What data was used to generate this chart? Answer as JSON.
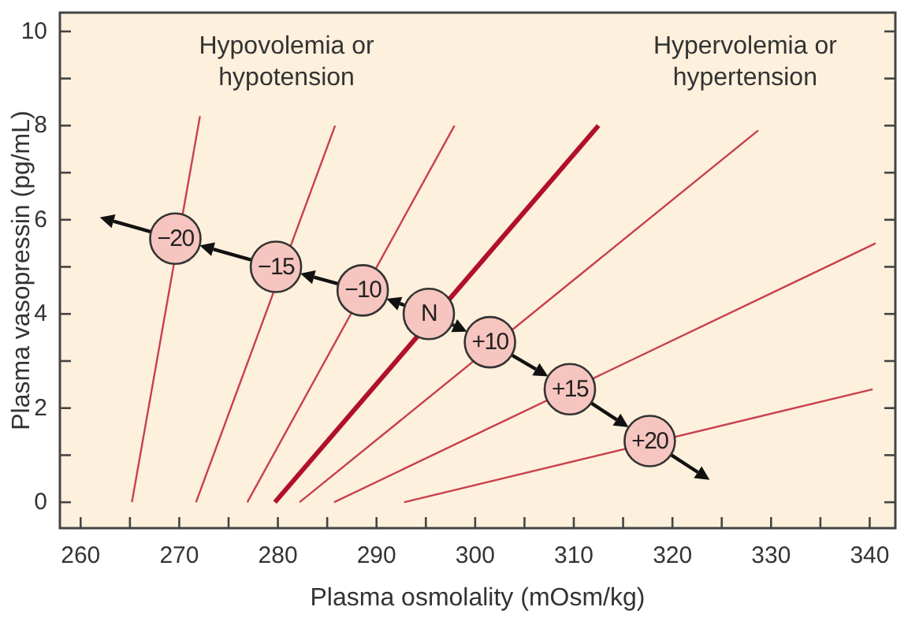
{
  "chart_data": {
    "type": "line",
    "xlabel": "Plasma osmolality (mOsm/kg)",
    "ylabel": "Plasma vasopressin (pg/mL)",
    "annotations": [
      "Hypovolemia or\nhypotension",
      "Hypervolemia or\nhypertension",
      {
        "text": "−20",
        "x": 269.6,
        "y": 5.6
      },
      {
        "text": "−15",
        "x": 279.8,
        "y": 5.0
      },
      {
        "text": "−10",
        "x": 288.6,
        "y": 4.5
      },
      {
        "text": "N",
        "x": 295.3,
        "y": 4.0
      },
      {
        "text": "+10",
        "x": 301.5,
        "y": 3.4
      },
      {
        "text": "+15",
        "x": 309.6,
        "y": 2.4
      },
      {
        "text": "+20",
        "x": 317.7,
        "y": 1.3
      }
    ],
    "xlim": [
      257.9,
      342.6
    ],
    "ylim": [
      -0.55,
      10.4
    ],
    "xticks": [
      260,
      {
        "value": 265,
        "label": null
      },
      270,
      {
        "value": 275,
        "label": null
      },
      280,
      {
        "value": 285,
        "label": null
      },
      290,
      {
        "value": 295,
        "label": null
      },
      300,
      {
        "value": 305,
        "label": null
      },
      310,
      {
        "value": 315,
        "label": null
      },
      320,
      {
        "value": 325,
        "label": null
      },
      330,
      {
        "value": 335,
        "label": null
      },
      340
    ],
    "yticks": [
      0,
      {
        "value": 1,
        "label": null
      },
      2,
      {
        "value": 3,
        "label": null
      },
      4,
      {
        "value": 5,
        "label": null
      },
      6,
      {
        "value": 7,
        "label": null
      },
      8,
      {
        "value": 9,
        "label": null
      },
      10
    ],
    "series": [
      {
        "color": "#c8404c",
        "x": [
          265.2,
          272.1
        ],
        "values": [
          0,
          8.2
        ]
      },
      {
        "color": "#c8404c",
        "x": [
          271.7,
          285.8
        ],
        "values": [
          0,
          8.0
        ]
      },
      {
        "color": "#c8404c",
        "x": [
          276.9,
          297.9
        ],
        "values": [
          0,
          8.0
        ]
      },
      {
        "color": "#b0102a",
        "x": [
          279.7,
          312.5
        ],
        "values": [
          0,
          8.0
        ]
      },
      {
        "color": "#c8404c",
        "x": [
          282.2,
          328.7
        ],
        "values": [
          0,
          7.9
        ]
      },
      {
        "color": "#c8404c",
        "x": [
          285.7,
          340.6
        ],
        "values": [
          0,
          5.5
        ]
      },
      {
        "color": "#c8404c",
        "x": [
          292.8,
          340.3
        ],
        "values": [
          0,
          2.4
        ]
      },
      {
        "type": "scatter",
        "color": "#f7c5bf",
        "marker": "circle",
        "x": [
          269.6,
          279.8,
          288.6,
          295.3,
          301.5,
          309.6,
          317.7
        ],
        "values": [
          5.6,
          5.0,
          4.5,
          4.0,
          3.4,
          2.4,
          1.3
        ]
      }
    ]
  }
}
